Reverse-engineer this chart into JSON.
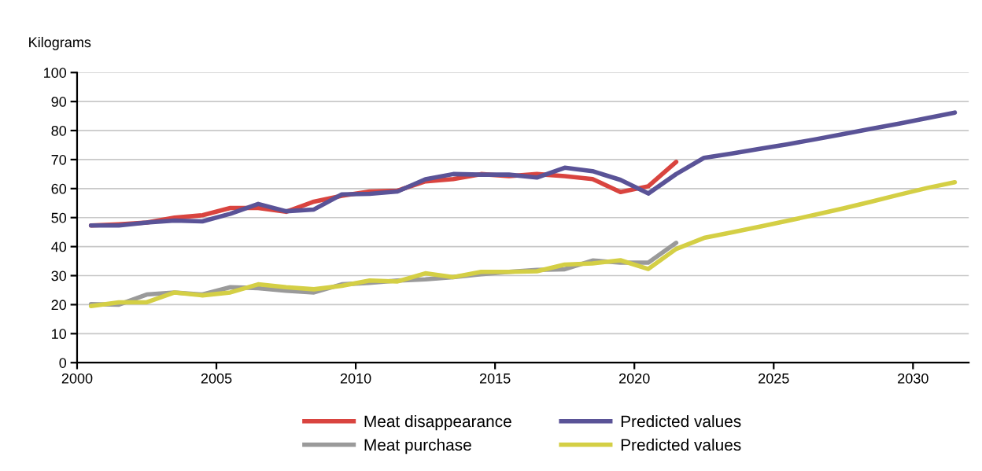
{
  "chart_data": {
    "type": "line",
    "ylabel": "Kilograms",
    "xlim": [
      2000,
      2032
    ],
    "ylim": [
      0,
      100
    ],
    "xticks": [
      2000,
      2005,
      2010,
      2015,
      2020,
      2025,
      2030
    ],
    "yticks": [
      0,
      10,
      20,
      30,
      40,
      50,
      60,
      70,
      80,
      90,
      100
    ],
    "grid": "y",
    "legend": "bottom",
    "line_style": "solid",
    "marker": "none",
    "series": [
      {
        "name": "Meat disappearance",
        "color": "#d9443f",
        "x": [
          2000.5,
          2001.5,
          2002.5,
          2003.5,
          2004.5,
          2005.5,
          2006.5,
          2007.5,
          2008.5,
          2009.5,
          2010.5,
          2011.5,
          2012.5,
          2013.5,
          2014.5,
          2015.5,
          2016.5,
          2017.5,
          2018.5,
          2019.5,
          2020.5,
          2021.5
        ],
        "values": [
          47.3,
          47.7,
          48.3,
          50.0,
          50.8,
          53.3,
          53.3,
          52.0,
          55.5,
          57.5,
          59.0,
          59.3,
          62.5,
          63.3,
          65.0,
          64.3,
          65.0,
          64.3,
          63.3,
          58.8,
          60.8,
          69.2
        ]
      },
      {
        "name": "Predicted values",
        "color": "#5a5397",
        "x": [
          2000.5,
          2001.5,
          2002.5,
          2003.5,
          2004.5,
          2005.5,
          2006.5,
          2007.5,
          2008.5,
          2009.5,
          2010.5,
          2011.5,
          2012.5,
          2013.5,
          2014.5,
          2015.5,
          2016.5,
          2017.5,
          2018.5,
          2019.5,
          2020.5,
          2021.5,
          2022.5,
          2023.5,
          2024.5,
          2025.5,
          2026.5,
          2027.5,
          2028.5,
          2029.5,
          2030.5,
          2031.5
        ],
        "values": [
          47.3,
          47.3,
          48.3,
          49.0,
          48.7,
          51.3,
          54.7,
          52.2,
          52.8,
          58.0,
          58.2,
          59.0,
          63.2,
          65.0,
          64.8,
          64.8,
          63.8,
          67.2,
          66.0,
          63.0,
          58.3,
          65.0,
          70.6,
          72.1,
          73.7,
          75.3,
          77.0,
          78.8,
          80.6,
          82.4,
          84.3,
          86.2
        ]
      },
      {
        "name": "Meat purchase",
        "color": "#9a9a9a",
        "x": [
          2000.5,
          2001.5,
          2002.5,
          2003.5,
          2004.5,
          2005.5,
          2006.5,
          2007.5,
          2008.5,
          2009.5,
          2010.5,
          2011.5,
          2012.5,
          2013.5,
          2014.5,
          2015.5,
          2016.5,
          2017.5,
          2018.5,
          2019.5,
          2020.5,
          2021.5
        ],
        "values": [
          20.2,
          20.0,
          23.5,
          24.2,
          23.5,
          26.0,
          25.7,
          24.8,
          24.2,
          27.0,
          27.5,
          28.3,
          28.7,
          29.5,
          30.5,
          31.3,
          32.0,
          32.2,
          35.2,
          34.5,
          34.5,
          41.3
        ]
      },
      {
        "name": "Predicted values",
        "color": "#d4cf45",
        "x": [
          2000.5,
          2001.5,
          2002.5,
          2003.5,
          2004.5,
          2005.5,
          2006.5,
          2007.5,
          2008.5,
          2009.5,
          2010.5,
          2011.5,
          2012.5,
          2013.5,
          2014.5,
          2015.5,
          2016.5,
          2017.5,
          2018.5,
          2019.5,
          2020.5,
          2021.5,
          2022.5,
          2023.5,
          2024.5,
          2025.5,
          2026.5,
          2027.5,
          2028.5,
          2029.5,
          2030.5,
          2031.5
        ],
        "values": [
          19.5,
          20.8,
          20.8,
          24.2,
          23.2,
          24.2,
          27.0,
          26.0,
          25.3,
          26.5,
          28.3,
          28.0,
          30.8,
          29.5,
          31.3,
          31.3,
          31.5,
          33.8,
          34.2,
          35.3,
          32.3,
          39.2,
          43.0,
          44.9,
          46.9,
          48.9,
          51.0,
          53.2,
          55.5,
          57.9,
          60.2,
          62.2
        ]
      }
    ]
  }
}
